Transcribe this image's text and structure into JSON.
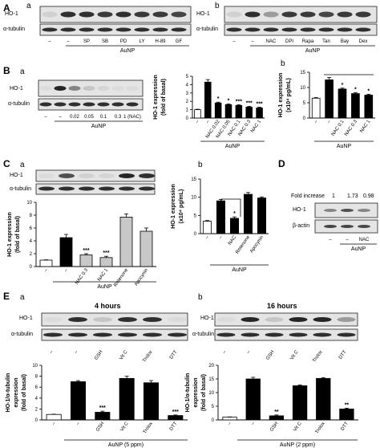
{
  "labels": {
    "A": "A",
    "B": "B",
    "C": "C",
    "D": "D",
    "E": "E",
    "a": "a",
    "b": "b"
  },
  "text": {
    "ho1": "HO-1",
    "atub": "α-tubulin",
    "bactin": "β-actin",
    "aunp": "AuNP",
    "aunp5": "AuNP (5 ppm)",
    "aunp2": "AuNP (2 ppm)",
    "dash": "–",
    "fold_increase": "Fold increase",
    "hours4": "4 hours",
    "hours16": "16 hours",
    "y_fold": "HO-1 expression",
    "y_fold_sub": "(fold of basal)",
    "y_pg": "HO-1 expression",
    "y_pg_sub": "(x10⁴ pg/mL)",
    "y_ratio": "HO-1/α-tubulin",
    "y_ratio_sub": "expression",
    "y_ratio_sub2": "(fold of basal)"
  },
  "blots": {
    "Aa_lanes": [
      "–",
      "–",
      "SP",
      "SB",
      "PD",
      "LY",
      "H-89",
      "GF"
    ],
    "Ab_lanes": [
      "–",
      "–",
      "NAC",
      "DPI",
      "Rapa",
      "Tan",
      "Bay",
      "Dex"
    ],
    "Ba_lanes": [
      "–",
      "–",
      "0.02",
      "0.05",
      "0.1",
      "0.3",
      "1 (NAC)"
    ],
    "D_fold": [
      "1",
      "1.73",
      "0.98"
    ],
    "D_lanes": [
      "–",
      "–",
      "NAC"
    ],
    "Ea_lanes": [
      "–",
      "–",
      "GSH",
      "Vit C",
      "Trolox",
      "DTT"
    ],
    "Eb_lanes": [
      "–",
      "–",
      "GSH",
      "Vit C",
      "Trolox",
      "DTT"
    ]
  },
  "chart_data": [
    {
      "id": "Ba",
      "type": "bar",
      "categories": [
        "–",
        "–",
        "NAC 0.02",
        "NAC 0.05",
        "NAC 0.1",
        "NAC 0.3",
        "NAC 1"
      ],
      "values": [
        1,
        4.3,
        1.8,
        1.6,
        1.5,
        1.3,
        1.2
      ],
      "errors": [
        0.05,
        0.3,
        0.1,
        0.1,
        0.1,
        0.1,
        0.1
      ],
      "sig": [
        "",
        "",
        "*",
        "*",
        "***",
        "***",
        "***"
      ],
      "ylim": [
        0,
        5
      ],
      "yticks": [
        0,
        1,
        2,
        3,
        4,
        5
      ],
      "group": "AuNP",
      "ylabel": "HO-1 expression (fold of basal)"
    },
    {
      "id": "Bb",
      "type": "bar",
      "categories": [
        "–",
        "–",
        "NAC 0.1",
        "NAC 0.3",
        "NAC 1"
      ],
      "values": [
        6.5,
        12.5,
        9.5,
        8,
        7.5
      ],
      "errors": [
        0.2,
        0.8,
        0.3,
        0.3,
        0.3
      ],
      "sig": [
        "",
        "",
        "*",
        "*",
        "*"
      ],
      "ylim": [
        0,
        15
      ],
      "yticks": [
        0,
        5,
        10,
        15
      ],
      "group": "AuNP",
      "ylabel": "HO-1 expression (x10⁴ pg/mL)"
    },
    {
      "id": "Ca",
      "type": "bar",
      "categories": [
        "–",
        "–",
        "NAC 0.3",
        "NAC 1",
        "Rotenone",
        "Apocynin"
      ],
      "values": [
        1,
        4.5,
        1.8,
        1.4,
        7.7,
        5.5
      ],
      "errors": [
        0.05,
        0.5,
        0.2,
        0.2,
        0.5,
        0.5
      ],
      "sig": [
        "",
        "",
        "***",
        "***",
        "",
        ""
      ],
      "ylim": [
        0,
        10
      ],
      "yticks": [
        0,
        2,
        4,
        6,
        8,
        10
      ],
      "group": "AuNP",
      "ylabel": "HO-1 expression (fold of basal)"
    },
    {
      "id": "Cb",
      "type": "bar",
      "categories": [
        "–",
        "–",
        "NAC",
        "Rotenone",
        "Apocynin"
      ],
      "values": [
        3.4,
        9,
        4.2,
        10.8,
        9.8
      ],
      "errors": [
        0.2,
        0.4,
        0.4,
        0.5,
        0.3
      ],
      "sig": [
        "",
        "",
        "*",
        "",
        ""
      ],
      "ylim": [
        0,
        15
      ],
      "yticks": [
        0,
        5,
        10,
        15
      ],
      "group": "AuNP",
      "ylabel": "HO-1 expression (x10⁴ pg/mL)"
    },
    {
      "id": "Ea",
      "type": "bar",
      "categories": [
        "–",
        "–",
        "GSH",
        "Vit C",
        "Trolox",
        "DTT"
      ],
      "values": [
        1,
        7,
        1.4,
        7.6,
        6.8,
        0.8
      ],
      "errors": [
        0.05,
        0.2,
        0.2,
        0.4,
        0.4,
        0.1
      ],
      "sig": [
        "",
        "",
        "***",
        "",
        "",
        "***"
      ],
      "ylim": [
        0,
        10
      ],
      "yticks": [
        0,
        2,
        4,
        6,
        8,
        10
      ],
      "group": "AuNP (5 ppm)",
      "ylabel": "HO-1/α-tubulin expression (fold of basal)"
    },
    {
      "id": "Eb",
      "type": "bar",
      "categories": [
        "–",
        "–",
        "GSH",
        "Vit C",
        "Trolox",
        "DTT"
      ],
      "values": [
        1,
        15,
        1.5,
        12.5,
        15.2,
        4
      ],
      "errors": [
        0.1,
        0.6,
        0.3,
        0.3,
        0.3,
        0.3
      ],
      "sig": [
        "",
        "",
        "**",
        "",
        "",
        "**"
      ],
      "ylim": [
        0,
        20
      ],
      "yticks": [
        0,
        5,
        10,
        15,
        20
      ],
      "group": "AuNP (2 ppm)",
      "ylabel": "HO-1/α-tubulin expression (fold of basal)"
    }
  ]
}
